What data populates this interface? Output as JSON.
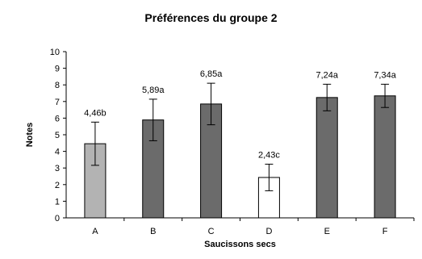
{
  "chart_data": {
    "type": "bar",
    "title": "Préférences du groupe 2",
    "xlabel": "Saucissons secs",
    "ylabel": "Notes",
    "ylim": [
      0,
      10
    ],
    "yticks": [
      0,
      1,
      2,
      3,
      4,
      5,
      6,
      7,
      8,
      9,
      10
    ],
    "grid": false,
    "categories": [
      "A",
      "B",
      "C",
      "D",
      "E",
      "F"
    ],
    "values": [
      4.46,
      5.89,
      6.85,
      2.43,
      7.24,
      7.34
    ],
    "error": [
      1.3,
      1.25,
      1.25,
      0.8,
      0.8,
      0.7
    ],
    "data_labels": [
      "4,46b",
      "5,89a",
      "6,85a",
      "2,43c",
      "7,24a",
      "7,34a"
    ],
    "bar_colors": [
      "#b3b3b3",
      "#6b6b6b",
      "#6b6b6b",
      "#ffffff",
      "#6b6b6b",
      "#6b6b6b"
    ]
  }
}
